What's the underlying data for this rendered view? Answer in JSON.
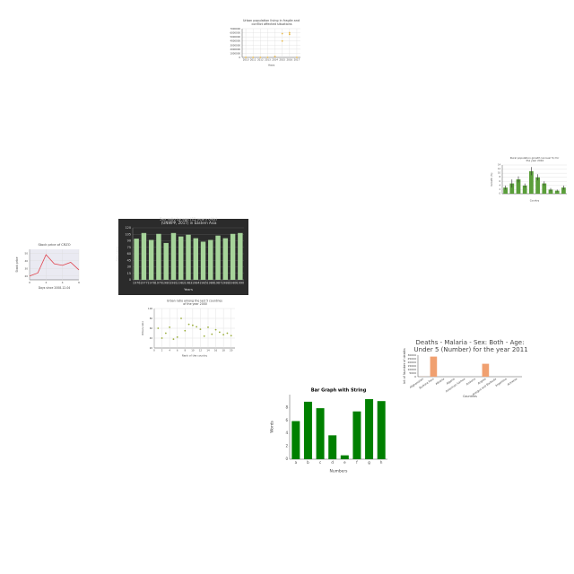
{
  "chart_data": [
    {
      "type": "scatter",
      "title": "Urban population living in fragile and conflict affected situations",
      "x_label": "Years",
      "color": "#e8b84a",
      "x": [
        2010,
        2011,
        2012,
        2013,
        2014,
        2015,
        2015,
        2016,
        2016,
        2017
      ],
      "values": [
        0,
        0,
        0,
        0,
        200000,
        4000000,
        5800000,
        5600000,
        6000000,
        0
      ],
      "xlim": [
        2009.5,
        2017.5
      ],
      "xticks": [
        2010,
        2011,
        2012,
        2013,
        2014,
        2015,
        2016,
        2017
      ],
      "ylim": [
        0,
        7000000
      ],
      "yticks": [
        0,
        1000000,
        2000000,
        3000000,
        4000000,
        5000000,
        6000000,
        7000000
      ],
      "grid": true
    },
    {
      "type": "bar",
      "title": "Rural population growth (annual %) for the year 2010",
      "x_label": "Country",
      "y_label": "Growth (%)",
      "color": "#5a9e3a",
      "categories": [
        null,
        null,
        null,
        null,
        null,
        null,
        null,
        null,
        null,
        null
      ],
      "values": [
        3,
        5,
        7,
        4,
        11,
        8,
        5,
        2,
        1.5,
        3
      ],
      "errors": [
        1,
        2,
        1.5,
        1,
        2,
        1.5,
        1,
        0.8,
        0.5,
        1
      ],
      "ylim": [
        0,
        14
      ],
      "yticks": [
        0,
        2,
        4,
        6,
        8,
        10,
        12,
        14
      ],
      "grid": true
    },
    {
      "type": "bar",
      "title": "Sex ratio by age (15 years olds) (UNWPP, 2017) in Eastern Asia",
      "x_label": "Years",
      "y_label": "Sex ratio",
      "color": "#a6d49a",
      "background": "#2b2b2b",
      "categories": [
        "1976",
        "1977",
        "1978",
        "1979",
        "1980",
        "1981",
        "1982",
        "1983",
        "1984",
        "1985",
        "1986",
        "1987",
        "1988",
        "1989",
        "1990"
      ],
      "values": [
        95,
        108,
        92,
        106,
        85,
        108,
        100,
        104,
        96,
        88,
        92,
        102,
        96,
        106,
        108
      ],
      "ylim": [
        0,
        120
      ],
      "yticks": [
        0,
        15,
        30,
        45,
        60,
        75,
        90,
        105,
        120
      ],
      "grid": true
    },
    {
      "type": "line",
      "title": "Stock price of CRZO",
      "x_label": "Days since 2008-12-04",
      "y_label": "Stock price",
      "color": "#e0444e",
      "background": "#eaeaf2",
      "x": [
        0,
        1,
        2,
        3,
        4,
        5,
        6
      ],
      "values": [
        20,
        24,
        48,
        36,
        34,
        38,
        28
      ],
      "xlim": [
        0,
        6
      ],
      "xticks": [
        0,
        2,
        4,
        6
      ],
      "ylim": [
        15,
        55
      ],
      "yticks": [
        20,
        30,
        40,
        50
      ],
      "grid": true
    },
    {
      "type": "scatter",
      "title": "Urban ratio among the last 5 countries of the year 2000",
      "x_label": "Rank of the country",
      "y_label": "Urban ratio",
      "color": "#9aad3a",
      "x": [
        1,
        2,
        3,
        4,
        5,
        6,
        7,
        8,
        9,
        10,
        11,
        12,
        13,
        14,
        15,
        16,
        17,
        18,
        19,
        20
      ],
      "values": [
        60,
        40,
        50,
        62,
        38,
        42,
        80,
        55,
        68,
        66,
        63,
        58,
        44,
        62,
        48,
        57,
        52,
        47,
        50,
        45
      ],
      "xlim": [
        0,
        21
      ],
      "xticks": [
        0,
        2,
        4,
        6,
        8,
        10,
        12,
        14,
        16,
        18,
        20
      ],
      "ylim": [
        20,
        100
      ],
      "yticks": [
        20,
        40,
        60,
        80,
        100
      ],
      "grid": true
    },
    {
      "type": "bar",
      "title": "Deaths - Malaria - Sex: Both - Age: Under 5 (Number) for the year 2011",
      "x_label": "Countries",
      "y_label": "Int of Number of deaths",
      "color": "#f0a070",
      "categories": [
        "Afghanistan",
        "Burkina Faso",
        "Albania",
        "Algeria",
        "American Samoa",
        "Andorra",
        "Angola",
        "Antigua and Barbuda",
        "Argentina",
        "Armenia"
      ],
      "values": [
        150,
        28000,
        0,
        0,
        0,
        0,
        18000,
        0,
        0,
        0
      ],
      "ylim": [
        0,
        30000
      ],
      "yticks": [
        0,
        5000,
        10000,
        15000,
        20000,
        25000,
        30000
      ],
      "grid": false
    },
    {
      "type": "bar",
      "title": "Bar Graph with String",
      "x_label": "Numbers",
      "y_label": "Words",
      "color": "#008000",
      "categories": [
        "a",
        "b",
        "c",
        "d",
        "e",
        "f",
        "g",
        "h"
      ],
      "values": [
        5.9,
        8.9,
        7.9,
        3.7,
        0.6,
        7.4,
        9.3,
        9.0
      ],
      "ylim": [
        0,
        10
      ],
      "yticks": [
        0,
        2,
        4,
        6,
        8
      ],
      "grid": false
    }
  ]
}
